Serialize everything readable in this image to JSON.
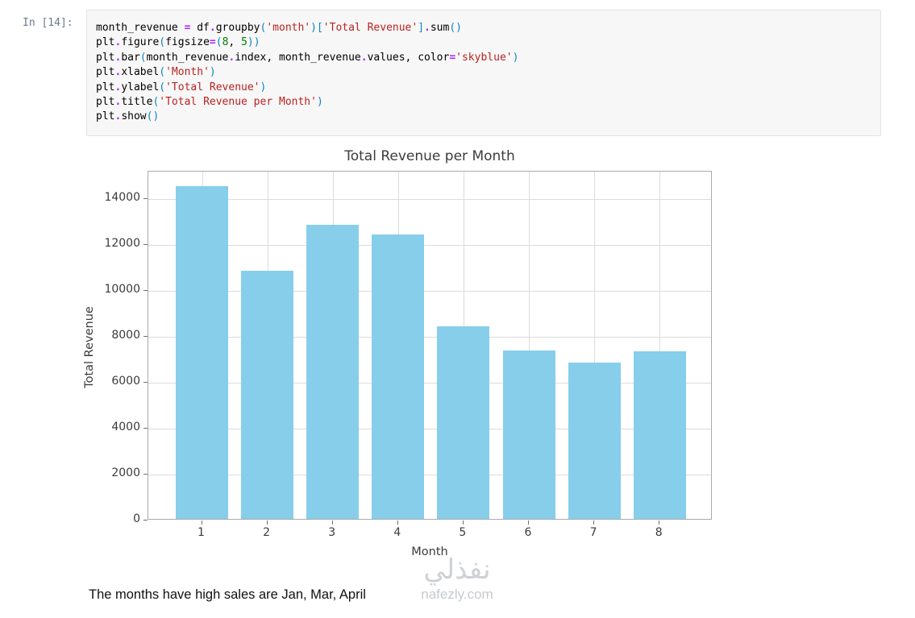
{
  "notebook": {
    "prompt": "In [14]:",
    "code_lines": [
      [
        {
          "t": "p",
          "v": "month_revenue "
        },
        {
          "t": "o",
          "v": "= "
        },
        {
          "t": "p",
          "v": "df"
        },
        {
          "t": "o",
          "v": "."
        },
        {
          "t": "p",
          "v": "groupby"
        },
        {
          "t": "b",
          "v": "("
        },
        {
          "t": "s",
          "v": "'month'"
        },
        {
          "t": "b",
          "v": ")["
        },
        {
          "t": "s",
          "v": "'Total Revenue'"
        },
        {
          "t": "b",
          "v": "]"
        },
        {
          "t": "o",
          "v": "."
        },
        {
          "t": "p",
          "v": "sum"
        },
        {
          "t": "b",
          "v": "()"
        }
      ],
      [
        {
          "t": "p",
          "v": "plt"
        },
        {
          "t": "o",
          "v": "."
        },
        {
          "t": "p",
          "v": "figure"
        },
        {
          "t": "b",
          "v": "("
        },
        {
          "t": "p",
          "v": "figsize"
        },
        {
          "t": "o",
          "v": "="
        },
        {
          "t": "b",
          "v": "("
        },
        {
          "t": "n",
          "v": "8"
        },
        {
          "t": "p",
          "v": ", "
        },
        {
          "t": "n",
          "v": "5"
        },
        {
          "t": "b",
          "v": "))"
        }
      ],
      [
        {
          "t": "p",
          "v": "plt"
        },
        {
          "t": "o",
          "v": "."
        },
        {
          "t": "p",
          "v": "bar"
        },
        {
          "t": "b",
          "v": "("
        },
        {
          "t": "p",
          "v": "month_revenue"
        },
        {
          "t": "o",
          "v": "."
        },
        {
          "t": "p",
          "v": "index, month_revenue"
        },
        {
          "t": "o",
          "v": "."
        },
        {
          "t": "p",
          "v": "values, color"
        },
        {
          "t": "o",
          "v": "="
        },
        {
          "t": "s",
          "v": "'skyblue'"
        },
        {
          "t": "b",
          "v": ")"
        }
      ],
      [
        {
          "t": "p",
          "v": "plt"
        },
        {
          "t": "o",
          "v": "."
        },
        {
          "t": "p",
          "v": "xlabel"
        },
        {
          "t": "b",
          "v": "("
        },
        {
          "t": "s",
          "v": "'Month'"
        },
        {
          "t": "b",
          "v": ")"
        }
      ],
      [
        {
          "t": "p",
          "v": "plt"
        },
        {
          "t": "o",
          "v": "."
        },
        {
          "t": "p",
          "v": "ylabel"
        },
        {
          "t": "b",
          "v": "("
        },
        {
          "t": "s",
          "v": "'Total Revenue'"
        },
        {
          "t": "b",
          "v": ")"
        }
      ],
      [
        {
          "t": "p",
          "v": "plt"
        },
        {
          "t": "o",
          "v": "."
        },
        {
          "t": "p",
          "v": "title"
        },
        {
          "t": "b",
          "v": "("
        },
        {
          "t": "s",
          "v": "'Total Revenue per Month'"
        },
        {
          "t": "b",
          "v": ")"
        }
      ],
      [
        {
          "t": "p",
          "v": "plt"
        },
        {
          "t": "o",
          "v": "."
        },
        {
          "t": "p",
          "v": "show"
        },
        {
          "t": "b",
          "v": "()"
        }
      ]
    ]
  },
  "chart_data": {
    "type": "bar",
    "title": "Total Revenue per Month",
    "xlabel": "Month",
    "ylabel": "Total Revenue",
    "categories": [
      "1",
      "2",
      "3",
      "4",
      "5",
      "6",
      "7",
      "8"
    ],
    "values": [
      14500,
      10800,
      12800,
      12400,
      8400,
      7350,
      6800,
      7300
    ],
    "bar_color": "#87CEEB",
    "ylim": [
      0,
      15200
    ],
    "yticks": [
      0,
      2000,
      4000,
      6000,
      8000,
      10000,
      12000,
      14000
    ],
    "grid": true,
    "legend": "none"
  },
  "output_text": "The months have high sales are Jan, Mar, April",
  "watermark": {
    "arabic": "نفذلي",
    "domain": "nafezly.com"
  }
}
